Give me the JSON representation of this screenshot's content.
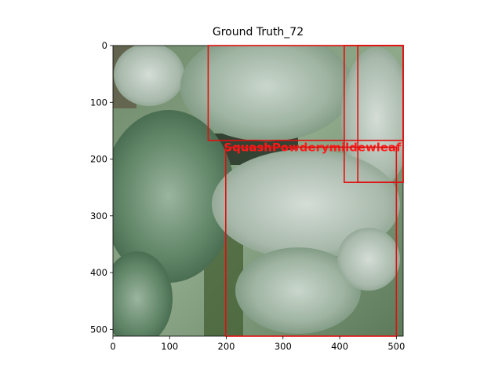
{
  "title": "Ground Truth_72",
  "image_size": [
    512,
    512
  ],
  "x_ticks": [
    0,
    100,
    200,
    300,
    400,
    500
  ],
  "y_ticks": [
    0,
    100,
    200,
    300,
    400,
    500
  ],
  "box_color": "#e01010",
  "boxes": [
    {
      "x0": 168,
      "y0": 0,
      "x1": 512,
      "y1": 167,
      "label": "SquashPowderymildewleaf"
    },
    {
      "x0": 199,
      "y0": 179,
      "x1": 500,
      "y1": 512,
      "label": ""
    },
    {
      "x0": 408,
      "y0": 0,
      "x1": 512,
      "y1": 241,
      "label": ""
    },
    {
      "x0": 432,
      "y0": 0,
      "x1": 512,
      "y1": 241,
      "label": ""
    }
  ]
}
